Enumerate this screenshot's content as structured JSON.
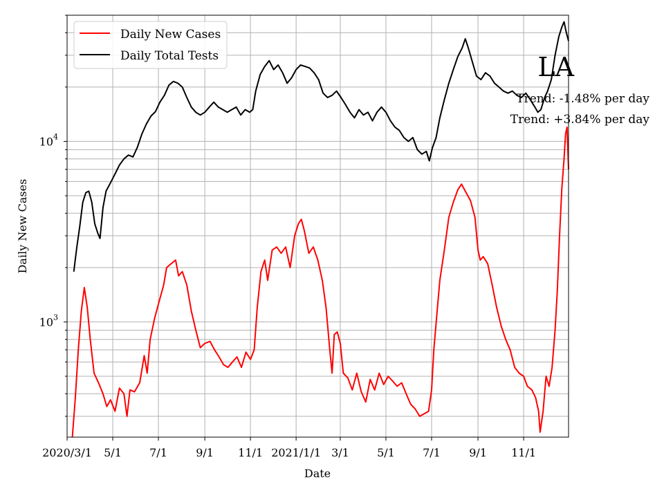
{
  "chart_data": {
    "type": "line",
    "scale": "log",
    "xlabel": "Date",
    "ylabel": "Daily New Cases",
    "x_range": [
      "2020-03-01",
      "2021-12-31"
    ],
    "ylim": [
      230,
      50000
    ],
    "grid": true,
    "legend_position": "upper-left",
    "x_tick_dates": [
      "2020-03-01",
      "2020-05-01",
      "2020-07-01",
      "2020-09-01",
      "2020-11-01",
      "2021-01-01",
      "2021-03-01",
      "2021-05-01",
      "2021-07-01",
      "2021-09-01",
      "2021-11-01"
    ],
    "x_tick_labels": [
      "2020/3/1",
      "5/1",
      "7/1",
      "9/1",
      "11/1",
      "2021/1/1",
      "3/1",
      "5/1",
      "7/1",
      "9/1",
      "11/1"
    ],
    "y_major_ticks": [
      {
        "value": 1000,
        "base": "10",
        "exp": "3"
      },
      {
        "value": 10000,
        "base": "10",
        "exp": "4"
      }
    ],
    "annotations": {
      "region": "LA",
      "trend_tests": "Trend: -1.48% per day",
      "trend_cases": "Trend: +3.84% per day"
    },
    "series": [
      {
        "name": "Daily New Cases",
        "color": "#ff0000",
        "points": [
          [
            "2020-03-08",
            230
          ],
          [
            "2020-03-12",
            380
          ],
          [
            "2020-03-16",
            700
          ],
          [
            "2020-03-20",
            1150
          ],
          [
            "2020-03-24",
            1550
          ],
          [
            "2020-03-28",
            1200
          ],
          [
            "2020-04-01",
            800
          ],
          [
            "2020-04-06",
            520
          ],
          [
            "2020-04-12",
            460
          ],
          [
            "2020-04-18",
            400
          ],
          [
            "2020-04-23",
            340
          ],
          [
            "2020-04-28",
            370
          ],
          [
            "2020-05-04",
            320
          ],
          [
            "2020-05-10",
            430
          ],
          [
            "2020-05-16",
            400
          ],
          [
            "2020-05-20",
            300
          ],
          [
            "2020-05-24",
            420
          ],
          [
            "2020-05-30",
            410
          ],
          [
            "2020-06-06",
            460
          ],
          [
            "2020-06-12",
            650
          ],
          [
            "2020-06-16",
            520
          ],
          [
            "2020-06-20",
            800
          ],
          [
            "2020-06-26",
            1050
          ],
          [
            "2020-07-02",
            1300
          ],
          [
            "2020-07-08",
            1600
          ],
          [
            "2020-07-12",
            2000
          ],
          [
            "2020-07-18",
            2100
          ],
          [
            "2020-07-24",
            2200
          ],
          [
            "2020-07-28",
            1800
          ],
          [
            "2020-08-02",
            1900
          ],
          [
            "2020-08-08",
            1600
          ],
          [
            "2020-08-14",
            1150
          ],
          [
            "2020-08-20",
            900
          ],
          [
            "2020-08-26",
            720
          ],
          [
            "2020-09-01",
            760
          ],
          [
            "2020-09-08",
            780
          ],
          [
            "2020-09-14",
            700
          ],
          [
            "2020-09-20",
            640
          ],
          [
            "2020-09-26",
            580
          ],
          [
            "2020-10-02",
            560
          ],
          [
            "2020-10-08",
            600
          ],
          [
            "2020-10-14",
            640
          ],
          [
            "2020-10-20",
            560
          ],
          [
            "2020-10-26",
            680
          ],
          [
            "2020-11-01",
            620
          ],
          [
            "2020-11-06",
            700
          ],
          [
            "2020-11-10",
            1200
          ],
          [
            "2020-11-15",
            1900
          ],
          [
            "2020-11-20",
            2200
          ],
          [
            "2020-11-24",
            1700
          ],
          [
            "2020-11-30",
            2500
          ],
          [
            "2020-12-06",
            2600
          ],
          [
            "2020-12-12",
            2400
          ],
          [
            "2020-12-18",
            2600
          ],
          [
            "2020-12-24",
            2000
          ],
          [
            "2020-12-30",
            3000
          ],
          [
            "2021-01-04",
            3500
          ],
          [
            "2021-01-08",
            3700
          ],
          [
            "2021-01-12",
            3200
          ],
          [
            "2021-01-18",
            2400
          ],
          [
            "2021-01-24",
            2600
          ],
          [
            "2021-01-30",
            2200
          ],
          [
            "2021-02-05",
            1700
          ],
          [
            "2021-02-10",
            1200
          ],
          [
            "2021-02-15",
            700
          ],
          [
            "2021-02-18",
            520
          ],
          [
            "2021-02-21",
            850
          ],
          [
            "2021-02-25",
            880
          ],
          [
            "2021-03-01",
            760
          ],
          [
            "2021-03-05",
            520
          ],
          [
            "2021-03-11",
            490
          ],
          [
            "2021-03-17",
            420
          ],
          [
            "2021-03-23",
            520
          ],
          [
            "2021-03-29",
            410
          ],
          [
            "2021-04-04",
            360
          ],
          [
            "2021-04-10",
            480
          ],
          [
            "2021-04-16",
            420
          ],
          [
            "2021-04-22",
            520
          ],
          [
            "2021-04-28",
            450
          ],
          [
            "2021-05-04",
            500
          ],
          [
            "2021-05-10",
            470
          ],
          [
            "2021-05-16",
            440
          ],
          [
            "2021-05-22",
            460
          ],
          [
            "2021-05-28",
            400
          ],
          [
            "2021-06-03",
            350
          ],
          [
            "2021-06-09",
            330
          ],
          [
            "2021-06-15",
            300
          ],
          [
            "2021-06-21",
            310
          ],
          [
            "2021-06-27",
            320
          ],
          [
            "2021-07-01",
            420
          ],
          [
            "2021-07-04",
            700
          ],
          [
            "2021-07-08",
            1100
          ],
          [
            "2021-07-12",
            1700
          ],
          [
            "2021-07-18",
            2500
          ],
          [
            "2021-07-24",
            3800
          ],
          [
            "2021-07-30",
            4600
          ],
          [
            "2021-08-05",
            5400
          ],
          [
            "2021-08-10",
            5800
          ],
          [
            "2021-08-15",
            5300
          ],
          [
            "2021-08-22",
            4700
          ],
          [
            "2021-08-28",
            3800
          ],
          [
            "2021-09-01",
            2500
          ],
          [
            "2021-09-04",
            2200
          ],
          [
            "2021-09-08",
            2300
          ],
          [
            "2021-09-14",
            2100
          ],
          [
            "2021-09-20",
            1600
          ],
          [
            "2021-09-26",
            1200
          ],
          [
            "2021-10-02",
            950
          ],
          [
            "2021-10-08",
            800
          ],
          [
            "2021-10-14",
            700
          ],
          [
            "2021-10-20",
            560
          ],
          [
            "2021-10-26",
            520
          ],
          [
            "2021-11-01",
            500
          ],
          [
            "2021-11-06",
            440
          ],
          [
            "2021-11-12",
            420
          ],
          [
            "2021-11-17",
            380
          ],
          [
            "2021-11-21",
            320
          ],
          [
            "2021-11-23",
            245
          ],
          [
            "2021-11-27",
            320
          ],
          [
            "2021-12-01",
            500
          ],
          [
            "2021-12-05",
            440
          ],
          [
            "2021-12-09",
            560
          ],
          [
            "2021-12-13",
            900
          ],
          [
            "2021-12-16",
            1500
          ],
          [
            "2021-12-19",
            3000
          ],
          [
            "2021-12-22",
            5500
          ],
          [
            "2021-12-25",
            8000
          ],
          [
            "2021-12-27",
            11000
          ],
          [
            "2021-12-29",
            12000
          ],
          [
            "2021-12-31",
            7000
          ]
        ]
      },
      {
        "name": "Daily Total Tests",
        "color": "#000000",
        "points": [
          [
            "2020-03-10",
            1900
          ],
          [
            "2020-03-14",
            2600
          ],
          [
            "2020-03-18",
            3400
          ],
          [
            "2020-03-22",
            4600
          ],
          [
            "2020-03-26",
            5200
          ],
          [
            "2020-03-30",
            5300
          ],
          [
            "2020-04-03",
            4600
          ],
          [
            "2020-04-07",
            3500
          ],
          [
            "2020-04-11",
            3100
          ],
          [
            "2020-04-14",
            2900
          ],
          [
            "2020-04-18",
            4300
          ],
          [
            "2020-04-22",
            5300
          ],
          [
            "2020-04-28",
            5900
          ],
          [
            "2020-05-04",
            6600
          ],
          [
            "2020-05-10",
            7400
          ],
          [
            "2020-05-16",
            8000
          ],
          [
            "2020-05-22",
            8400
          ],
          [
            "2020-05-28",
            8200
          ],
          [
            "2020-06-03",
            9300
          ],
          [
            "2020-06-09",
            11000
          ],
          [
            "2020-06-15",
            12500
          ],
          [
            "2020-06-21",
            13800
          ],
          [
            "2020-06-27",
            14600
          ],
          [
            "2020-07-03",
            16500
          ],
          [
            "2020-07-09",
            18000
          ],
          [
            "2020-07-15",
            20500
          ],
          [
            "2020-07-21",
            21500
          ],
          [
            "2020-07-27",
            21000
          ],
          [
            "2020-08-02",
            20000
          ],
          [
            "2020-08-08",
            17500
          ],
          [
            "2020-08-14",
            15500
          ],
          [
            "2020-08-20",
            14500
          ],
          [
            "2020-08-26",
            14000
          ],
          [
            "2020-09-01",
            14500
          ],
          [
            "2020-09-07",
            15500
          ],
          [
            "2020-09-13",
            16500
          ],
          [
            "2020-09-19",
            15500
          ],
          [
            "2020-09-25",
            15000
          ],
          [
            "2020-10-01",
            14500
          ],
          [
            "2020-10-07",
            15000
          ],
          [
            "2020-10-13",
            15500
          ],
          [
            "2020-10-19",
            14000
          ],
          [
            "2020-10-25",
            15000
          ],
          [
            "2020-10-31",
            14500
          ],
          [
            "2020-11-04",
            15000
          ],
          [
            "2020-11-08",
            19000
          ],
          [
            "2020-11-14",
            23500
          ],
          [
            "2020-11-20",
            26000
          ],
          [
            "2020-11-26",
            28000
          ],
          [
            "2020-12-02",
            25000
          ],
          [
            "2020-12-08",
            26500
          ],
          [
            "2020-12-14",
            24000
          ],
          [
            "2020-12-20",
            21000
          ],
          [
            "2020-12-26",
            22500
          ],
          [
            "2021-01-01",
            25000
          ],
          [
            "2021-01-07",
            26500
          ],
          [
            "2021-01-13",
            26000
          ],
          [
            "2021-01-19",
            25500
          ],
          [
            "2021-01-25",
            24000
          ],
          [
            "2021-01-31",
            22000
          ],
          [
            "2021-02-06",
            18500
          ],
          [
            "2021-02-12",
            17500
          ],
          [
            "2021-02-18",
            18000
          ],
          [
            "2021-02-24",
            19000
          ],
          [
            "2021-03-02",
            17500
          ],
          [
            "2021-03-08",
            16000
          ],
          [
            "2021-03-14",
            14500
          ],
          [
            "2021-03-20",
            13500
          ],
          [
            "2021-03-26",
            15000
          ],
          [
            "2021-04-01",
            14000
          ],
          [
            "2021-04-07",
            14500
          ],
          [
            "2021-04-13",
            13000
          ],
          [
            "2021-04-19",
            14500
          ],
          [
            "2021-04-25",
            15500
          ],
          [
            "2021-05-01",
            14500
          ],
          [
            "2021-05-07",
            13000
          ],
          [
            "2021-05-13",
            12000
          ],
          [
            "2021-05-19",
            11500
          ],
          [
            "2021-05-25",
            10500
          ],
          [
            "2021-05-31",
            10000
          ],
          [
            "2021-06-06",
            10500
          ],
          [
            "2021-06-12",
            9000
          ],
          [
            "2021-06-18",
            8500
          ],
          [
            "2021-06-24",
            8800
          ],
          [
            "2021-06-28",
            7800
          ],
          [
            "2021-07-02",
            9200
          ],
          [
            "2021-07-07",
            10500
          ],
          [
            "2021-07-12",
            13500
          ],
          [
            "2021-07-18",
            17000
          ],
          [
            "2021-07-24",
            21000
          ],
          [
            "2021-07-30",
            25000
          ],
          [
            "2021-08-05",
            29500
          ],
          [
            "2021-08-11",
            33000
          ],
          [
            "2021-08-15",
            37000
          ],
          [
            "2021-08-19",
            33000
          ],
          [
            "2021-08-24",
            28000
          ],
          [
            "2021-08-30",
            23000
          ],
          [
            "2021-09-05",
            22000
          ],
          [
            "2021-09-11",
            24000
          ],
          [
            "2021-09-17",
            23000
          ],
          [
            "2021-09-23",
            21000
          ],
          [
            "2021-09-29",
            20000
          ],
          [
            "2021-10-05",
            19000
          ],
          [
            "2021-10-11",
            18500
          ],
          [
            "2021-10-17",
            19000
          ],
          [
            "2021-10-23",
            18000
          ],
          [
            "2021-10-29",
            17500
          ],
          [
            "2021-11-04",
            18500
          ],
          [
            "2021-11-10",
            17000
          ],
          [
            "2021-11-16",
            15500
          ],
          [
            "2021-11-20",
            14500
          ],
          [
            "2021-11-24",
            15000
          ],
          [
            "2021-11-29",
            17500
          ],
          [
            "2021-12-03",
            19000
          ],
          [
            "2021-12-08",
            22000
          ],
          [
            "2021-12-13",
            30000
          ],
          [
            "2021-12-18",
            38000
          ],
          [
            "2021-12-22",
            43000
          ],
          [
            "2021-12-25",
            46000
          ],
          [
            "2021-12-28",
            40000
          ],
          [
            "2021-12-31",
            36000
          ]
        ]
      }
    ]
  }
}
